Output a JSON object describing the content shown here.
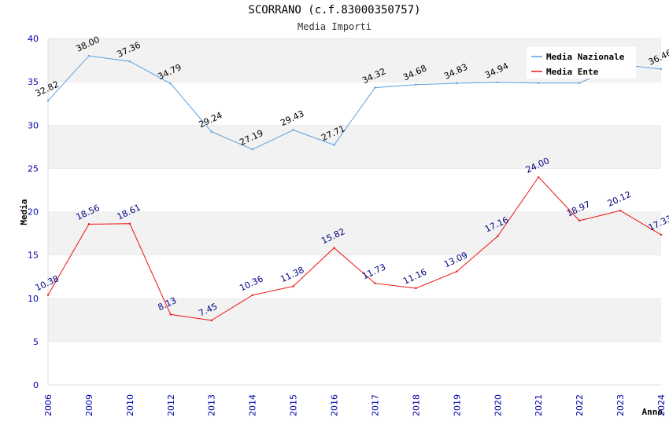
{
  "chart_data": {
    "type": "line",
    "title": "SCORRANO (c.f.83000350757)",
    "subtitle": "Media Importi",
    "xlabel": "Anno",
    "ylabel": "Media",
    "ylim": [
      0,
      40
    ],
    "yticks": [
      "0",
      "5",
      "10",
      "15",
      "20",
      "25",
      "30",
      "35",
      "40"
    ],
    "categories": [
      "2006",
      "2009",
      "2010",
      "2012",
      "2013",
      "2014",
      "2015",
      "2016",
      "2017",
      "2018",
      "2019",
      "2020",
      "2021",
      "2022",
      "2023",
      "2024"
    ],
    "series": [
      {
        "name": "Media Nazionale",
        "color": "#5aa0e0",
        "values": [
          32.82,
          38.0,
          37.36,
          34.79,
          29.24,
          27.19,
          29.43,
          27.71,
          34.32,
          34.68,
          34.83,
          34.94,
          34.85,
          34.85,
          37.0,
          36.46
        ],
        "labels": [
          "32.82",
          "38.00",
          "37.36",
          "34.79",
          "29.24",
          "27.19",
          "29.43",
          "27.71",
          "34.32",
          "34.68",
          "34.83",
          "34.94",
          "",
          "",
          "",
          "36.46"
        ]
      },
      {
        "name": "Media Ente",
        "color": "#ee1111",
        "values": [
          10.38,
          18.56,
          18.61,
          8.13,
          7.45,
          10.36,
          11.38,
          15.82,
          11.73,
          11.16,
          13.09,
          17.16,
          24.0,
          18.97,
          20.12,
          17.33
        ],
        "labels": [
          "10.38",
          "18.56",
          "18.61",
          "8.13",
          "7.45",
          "10.36",
          "11.38",
          "15.82",
          "11.73",
          "11.16",
          "13.09",
          "17.16",
          "24.00",
          "18.97",
          "20.12",
          "17.33"
        ]
      }
    ],
    "legend": "top-right",
    "grid": true
  }
}
